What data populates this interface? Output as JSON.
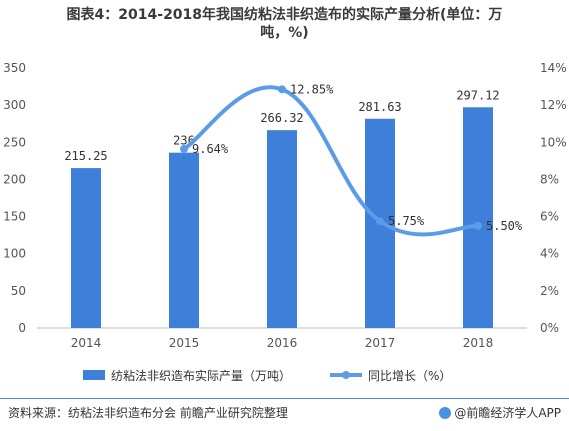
{
  "title_line1": "图表4：2014-2018年我国纺粘法非织造布的实际产量分析(单位：万",
  "title_line2": "吨，%)",
  "chart_data": {
    "type": "bar+line",
    "categories": [
      "2014",
      "2015",
      "2016",
      "2017",
      "2018"
    ],
    "series": [
      {
        "name": "纺粘法非织造布实际产量（万吨）",
        "type": "bar",
        "axis": "left",
        "values": [
          215.25,
          236,
          266.32,
          281.63,
          297.12
        ],
        "labels": [
          "215.25",
          "236",
          "266.32",
          "281.63",
          "297.12"
        ]
      },
      {
        "name": "同比增长（%）",
        "type": "line",
        "axis": "right",
        "values": [
          null,
          9.64,
          12.85,
          5.75,
          5.5
        ],
        "labels": [
          "",
          "9.64%",
          "12.85%",
          "5.75%",
          "5.50%"
        ]
      }
    ],
    "y_left": {
      "min": 0,
      "max": 350,
      "ticks": [
        "0",
        "50",
        "100",
        "150",
        "200",
        "250",
        "300",
        "350"
      ]
    },
    "y_right": {
      "min": 0,
      "max": 14,
      "ticks": [
        "0%",
        "2%",
        "4%",
        "6%",
        "8%",
        "10%",
        "12%",
        "14%"
      ]
    },
    "legend_position": "bottom",
    "grid": false,
    "colors": {
      "bar": "#3d7fd9",
      "line": "#5b9be8"
    }
  },
  "footer": {
    "source": "资料来源：纺粘法非织造布分会 前瞻产业研究院整理",
    "brand": "@前瞻经济学人APP"
  }
}
